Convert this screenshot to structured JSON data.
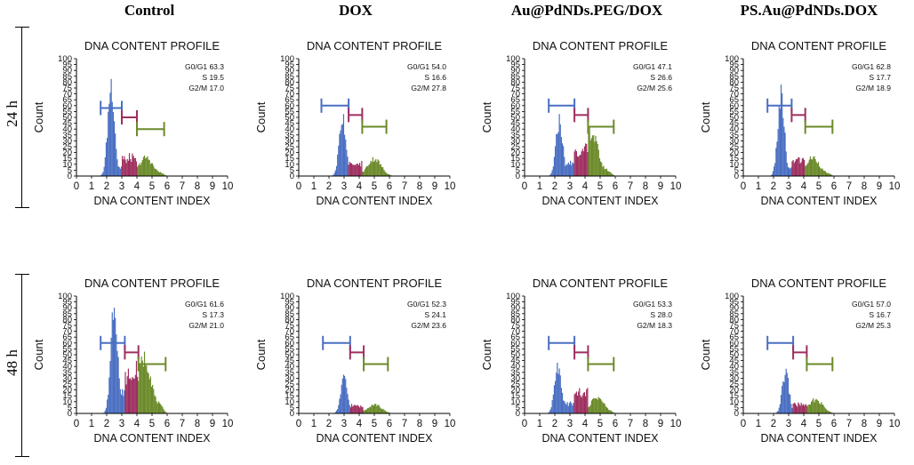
{
  "figure": {
    "columns": [
      "Control",
      "DOX",
      "Au@PdNDs.PEG/DOX",
      "PS.Au@PdNDs.DOX"
    ],
    "rows": [
      "24 h",
      "48 h"
    ]
  },
  "colors": {
    "g0g1": "#4a6fc2",
    "s": "#9e2f5f",
    "g2m": "#6b8a2a",
    "axis": "#000000"
  },
  "chart_data": [
    {
      "type": "bar",
      "row": "24 h",
      "column": "Control",
      "title": "DNA CONTENT PROFILE",
      "xlabel": "DNA CONTENT INDEX",
      "ylabel": "Count",
      "xlim": [
        0,
        10
      ],
      "ylim": [
        0,
        100
      ],
      "xticks": [
        "0",
        "1",
        "2",
        "3",
        "4",
        "5",
        "6",
        "7",
        "8",
        "9",
        "10"
      ],
      "yticks": [
        "0",
        "5",
        "10",
        "15",
        "20",
        "25",
        "30",
        "35",
        "40",
        "45",
        "50",
        "55",
        "60",
        "65",
        "70",
        "75",
        "80",
        "85",
        "90",
        "95",
        "100"
      ],
      "stats": [
        "G0/G1 63.3",
        "S 19.5",
        "G2/M 17.0"
      ],
      "g0g1_peak": 2.3,
      "g0g1_height": 80,
      "s_level": 18,
      "g2m_center": 4.6,
      "g2m_height": 16,
      "markers": {
        "g0g1": [
          1.6,
          3.0,
          58
        ],
        "s": [
          3.0,
          4.0,
          50
        ],
        "g2m": [
          4.0,
          5.8,
          40
        ]
      }
    },
    {
      "type": "bar",
      "row": "24 h",
      "column": "DOX",
      "title": "DNA CONTENT PROFILE",
      "xlabel": "DNA CONTENT INDEX",
      "ylabel": "Count",
      "xlim": [
        0,
        10
      ],
      "ylim": [
        0,
        100
      ],
      "xticks": [
        "0",
        "1",
        "2",
        "3",
        "4",
        "5",
        "6",
        "7",
        "8",
        "9",
        "10"
      ],
      "yticks": [
        "0",
        "5",
        "10",
        "15",
        "20",
        "25",
        "30",
        "35",
        "40",
        "45",
        "50",
        "55",
        "60",
        "65",
        "70",
        "75",
        "80",
        "85",
        "90",
        "95",
        "100"
      ],
      "stats": [
        "G0/G1 54.0",
        "S 16.6",
        "G2/M 27.8"
      ],
      "g0g1_peak": 2.9,
      "g0g1_height": 52,
      "s_level": 12,
      "g2m_center": 5.0,
      "g2m_height": 15,
      "markers": {
        "g0g1": [
          1.5,
          3.3,
          60
        ],
        "s": [
          3.3,
          4.2,
          52
        ],
        "g2m": [
          4.2,
          5.8,
          42
        ]
      }
    },
    {
      "type": "bar",
      "row": "24 h",
      "column": "Au@PdNDs.PEG/DOX",
      "title": "DNA CONTENT PROFILE",
      "xlabel": "DNA CONTENT INDEX",
      "ylabel": "Count",
      "xlim": [
        0,
        10
      ],
      "ylim": [
        0,
        100
      ],
      "xticks": [
        "0",
        "1",
        "2",
        "3",
        "4",
        "5",
        "6",
        "7",
        "8",
        "9",
        "10"
      ],
      "yticks": [
        "0",
        "5",
        "10",
        "15",
        "20",
        "25",
        "30",
        "35",
        "40",
        "45",
        "50",
        "55",
        "60",
        "65",
        "70",
        "75",
        "80",
        "85",
        "90",
        "95",
        "100"
      ],
      "stats": [
        "G0/G1 47.1",
        "S 26.6",
        "G2/M 25.6"
      ],
      "g0g1_peak": 2.3,
      "g0g1_height": 48,
      "s_level": 25,
      "g2m_center": 4.4,
      "g2m_height": 38,
      "markers": {
        "g0g1": [
          1.6,
          3.3,
          60
        ],
        "s": [
          3.3,
          4.2,
          52
        ],
        "g2m": [
          4.2,
          5.9,
          42
        ]
      }
    },
    {
      "type": "bar",
      "row": "24 h",
      "column": "PS.Au@PdNDs.DOX",
      "title": "DNA CONTENT PROFILE",
      "xlabel": "DNA CONTENT INDEX",
      "ylabel": "Count",
      "xlim": [
        0,
        10
      ],
      "ylim": [
        0,
        100
      ],
      "xticks": [
        "0",
        "1",
        "2",
        "3",
        "4",
        "5",
        "6",
        "7",
        "8",
        "9",
        "10"
      ],
      "yticks": [
        "0",
        "5",
        "10",
        "15",
        "20",
        "25",
        "30",
        "35",
        "40",
        "45",
        "50",
        "55",
        "60",
        "65",
        "70",
        "75",
        "80",
        "85",
        "90",
        "95",
        "100"
      ],
      "stats": [
        "G0/G1 62.8",
        "S 17.7",
        "G2/M 18.9"
      ],
      "g0g1_peak": 2.5,
      "g0g1_height": 68,
      "s_level": 16,
      "g2m_center": 4.6,
      "g2m_height": 16,
      "markers": {
        "g0g1": [
          1.6,
          3.2,
          60
        ],
        "s": [
          3.2,
          4.1,
          52
        ],
        "g2m": [
          4.1,
          5.9,
          42
        ]
      }
    },
    {
      "type": "bar",
      "row": "48 h",
      "column": "Control",
      "title": "DNA CONTENT PROFILE",
      "xlabel": "DNA CONTENT INDEX",
      "ylabel": "Count",
      "xlim": [
        0,
        10
      ],
      "ylim": [
        0,
        100
      ],
      "xticks": [
        "0",
        "1",
        "2",
        "3",
        "4",
        "5",
        "6",
        "7",
        "8",
        "9",
        "10"
      ],
      "yticks": [
        "0",
        "5",
        "10",
        "15",
        "20",
        "25",
        "30",
        "35",
        "40",
        "45",
        "50",
        "55",
        "60",
        "65",
        "70",
        "75",
        "80",
        "85",
        "90",
        "95",
        "100"
      ],
      "stats": [
        "G0/G1 61.6",
        "S 17.3",
        "G2/M 21.0"
      ],
      "g0g1_peak": 2.5,
      "g0g1_height": 100,
      "s_level": 40,
      "g2m_center": 4.5,
      "g2m_height": 48,
      "markers": {
        "g0g1": [
          1.6,
          3.2,
          60
        ],
        "s": [
          3.2,
          4.1,
          52
        ],
        "g2m": [
          4.1,
          5.9,
          42
        ]
      }
    },
    {
      "type": "bar",
      "row": "48 h",
      "column": "DOX",
      "title": "DNA CONTENT PROFILE",
      "xlabel": "DNA CONTENT INDEX",
      "ylabel": "Count",
      "xlim": [
        0,
        10
      ],
      "ylim": [
        0,
        100
      ],
      "xticks": [
        "0",
        "1",
        "2",
        "3",
        "4",
        "5",
        "6",
        "7",
        "8",
        "9",
        "10"
      ],
      "yticks": [
        "0",
        "5",
        "10",
        "15",
        "20",
        "25",
        "30",
        "35",
        "40",
        "45",
        "50",
        "55",
        "60",
        "65",
        "70",
        "75",
        "80",
        "85",
        "90",
        "95",
        "100"
      ],
      "stats": [
        "G0/G1 52.3",
        "S 24.1",
        "G2/M 23.6"
      ],
      "g0g1_peak": 3.0,
      "g0g1_height": 30,
      "s_level": 8,
      "g2m_center": 5.0,
      "g2m_height": 8,
      "markers": {
        "g0g1": [
          1.6,
          3.4,
          60
        ],
        "s": [
          3.4,
          4.3,
          52
        ],
        "g2m": [
          4.3,
          5.9,
          42
        ]
      }
    },
    {
      "type": "bar",
      "row": "48 h",
      "column": "Au@PdNDs.PEG/DOX",
      "title": "DNA CONTENT PROFILE",
      "xlabel": "DNA CONTENT INDEX",
      "ylabel": "Count",
      "xlim": [
        0,
        10
      ],
      "ylim": [
        0,
        100
      ],
      "xticks": [
        "0",
        "1",
        "2",
        "3",
        "4",
        "5",
        "6",
        "7",
        "8",
        "9",
        "10"
      ],
      "yticks": [
        "0",
        "5",
        "10",
        "15",
        "20",
        "25",
        "30",
        "35",
        "40",
        "45",
        "50",
        "55",
        "60",
        "65",
        "70",
        "75",
        "80",
        "85",
        "90",
        "95",
        "100"
      ],
      "stats": [
        "G0/G1 53.3",
        "S 28.0",
        "G2/M 18.3"
      ],
      "g0g1_peak": 2.2,
      "g0g1_height": 40,
      "s_level": 20,
      "g2m_center": 4.8,
      "g2m_height": 14,
      "markers": {
        "g0g1": [
          1.6,
          3.3,
          60
        ],
        "s": [
          3.3,
          4.2,
          52
        ],
        "g2m": [
          4.2,
          5.9,
          42
        ]
      }
    },
    {
      "type": "bar",
      "row": "48 h",
      "column": "PS.Au@PdNDs.DOX",
      "title": "DNA CONTENT PROFILE",
      "xlabel": "DNA CONTENT INDEX",
      "ylabel": "Count",
      "xlim": [
        0,
        10
      ],
      "ylim": [
        0,
        100
      ],
      "xticks": [
        "0",
        "1",
        "2",
        "3",
        "4",
        "5",
        "6",
        "7",
        "8",
        "9",
        "10"
      ],
      "yticks": [
        "0",
        "5",
        "10",
        "15",
        "20",
        "25",
        "30",
        "35",
        "40",
        "45",
        "50",
        "55",
        "60",
        "65",
        "70",
        "75",
        "80",
        "85",
        "90",
        "95",
        "100"
      ],
      "stats": [
        "G0/G1 57.0",
        "S 16.7",
        "G2/M 25.3"
      ],
      "g0g1_peak": 2.8,
      "g0g1_height": 36,
      "s_level": 9,
      "g2m_center": 4.8,
      "g2m_height": 12,
      "markers": {
        "g0g1": [
          1.6,
          3.3,
          60
        ],
        "s": [
          3.3,
          4.2,
          52
        ],
        "g2m": [
          4.2,
          5.9,
          42
        ]
      }
    }
  ]
}
